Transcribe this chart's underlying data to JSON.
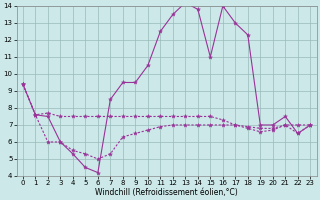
{
  "xlabel": "Windchill (Refroidissement éolien,°C)",
  "bg_color": "#cce8e8",
  "line_color": "#993399",
  "grid_color": "#99bbbb",
  "x": [
    0,
    1,
    2,
    3,
    4,
    5,
    6,
    7,
    8,
    9,
    10,
    11,
    12,
    13,
    14,
    15,
    16,
    17,
    18,
    19,
    20,
    21,
    22,
    23
  ],
  "line_peak": [
    9.4,
    7.6,
    7.5,
    6.0,
    5.3,
    4.5,
    4.2,
    8.5,
    9.5,
    9.5,
    10.5,
    12.5,
    13.5,
    14.2,
    13.8,
    11.0,
    14.0,
    13.0,
    12.3,
    7.0,
    7.0,
    7.5,
    6.5,
    7.0
  ],
  "line_mid": [
    9.4,
    7.6,
    7.7,
    7.5,
    7.5,
    7.5,
    7.5,
    7.5,
    7.5,
    7.5,
    7.5,
    7.5,
    7.5,
    7.5,
    7.5,
    7.5,
    7.3,
    7.0,
    6.9,
    6.8,
    6.8,
    7.0,
    7.0,
    7.0
  ],
  "line_low": [
    9.4,
    7.6,
    6.0,
    6.0,
    5.5,
    5.3,
    5.0,
    5.3,
    6.3,
    6.5,
    6.7,
    6.9,
    7.0,
    7.0,
    7.0,
    7.0,
    7.0,
    7.0,
    6.8,
    6.6,
    6.7,
    7.0,
    6.5,
    7.0
  ],
  "ylim": [
    4,
    14
  ],
  "yticks": [
    4,
    5,
    6,
    7,
    8,
    9,
    10,
    11,
    12,
    13,
    14
  ],
  "xticks": [
    0,
    1,
    2,
    3,
    4,
    5,
    6,
    7,
    8,
    9,
    10,
    11,
    12,
    13,
    14,
    15,
    16,
    17,
    18,
    19,
    20,
    21,
    22,
    23
  ],
  "figsize": [
    3.2,
    2.0
  ],
  "dpi": 100
}
